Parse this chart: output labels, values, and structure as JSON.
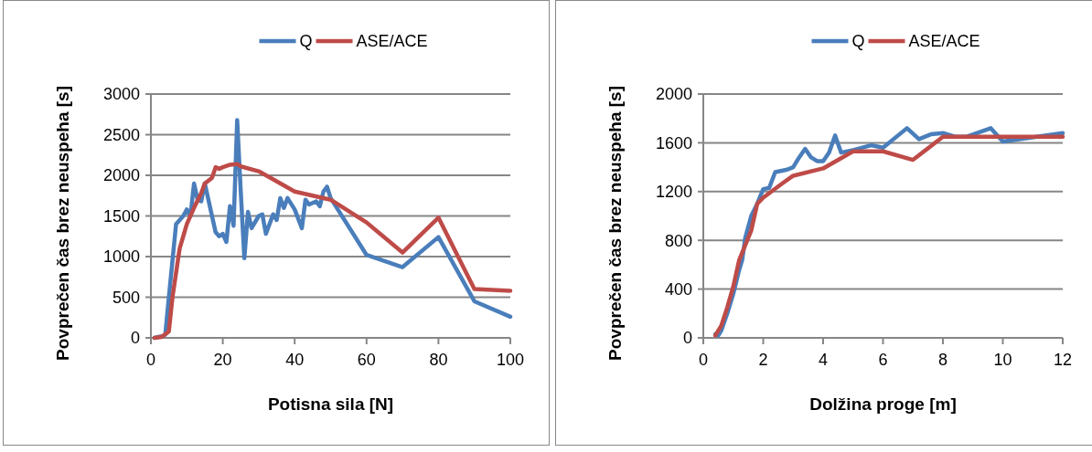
{
  "chart_data": [
    {
      "type": "line",
      "xlabel": "Potisna sila [N]",
      "ylabel": "Povprečen čas brez neuspeha [s]",
      "xlim": [
        0,
        100
      ],
      "xticks": [
        0,
        20,
        40,
        60,
        80,
        100
      ],
      "ylim": [
        0,
        3000
      ],
      "yticks": [
        0,
        500,
        1000,
        1500,
        2000,
        2500,
        3000
      ],
      "grid": "y",
      "legend": "top",
      "series": [
        {
          "name": "Q",
          "color": "#4a7ebb",
          "x": [
            1,
            3,
            4,
            5,
            7,
            9,
            10,
            11,
            12,
            13,
            14,
            15,
            16,
            17,
            18,
            19,
            20,
            21,
            22,
            23,
            24,
            25,
            26,
            27,
            28,
            30,
            31,
            32,
            34,
            35,
            36,
            37,
            38,
            40,
            42,
            43,
            44,
            46,
            47,
            48,
            49,
            50,
            60,
            70,
            80,
            90,
            100
          ],
          "values": [
            0,
            20,
            40,
            500,
            1400,
            1500,
            1580,
            1500,
            1900,
            1700,
            1680,
            1900,
            1700,
            1500,
            1300,
            1250,
            1280,
            1180,
            1620,
            1380,
            2680,
            1800,
            980,
            1550,
            1350,
            1500,
            1520,
            1280,
            1520,
            1450,
            1720,
            1600,
            1720,
            1580,
            1350,
            1700,
            1640,
            1680,
            1620,
            1800,
            1860,
            1720,
            1020,
            870,
            1240,
            450,
            260
          ]
        },
        {
          "name": "ASE/ACE",
          "color": "#be4b48",
          "x": [
            1,
            3,
            5,
            6,
            8,
            10,
            12,
            14,
            15,
            17,
            18,
            19,
            20,
            22,
            24,
            25,
            30,
            40,
            50,
            60,
            70,
            80,
            90,
            100
          ],
          "values": [
            0,
            10,
            80,
            500,
            1100,
            1400,
            1600,
            1780,
            1900,
            1970,
            2100,
            2080,
            2100,
            2130,
            2140,
            2110,
            2050,
            1800,
            1700,
            1420,
            1050,
            1480,
            600,
            580
          ]
        }
      ]
    },
    {
      "type": "line",
      "xlabel": "Dolžina proge [m]",
      "ylabel": "Povprečen čas brez neuspeha [s]",
      "xlim": [
        0,
        12
      ],
      "xticks": [
        0,
        2,
        4,
        6,
        8,
        10,
        12
      ],
      "ylim": [
        0,
        2000
      ],
      "yticks": [
        0,
        400,
        800,
        1200,
        1600,
        2000
      ],
      "grid": "y",
      "legend": "top",
      "series": [
        {
          "name": "Q",
          "color": "#4a7ebb",
          "x": [
            0.4,
            0.5,
            0.6,
            0.8,
            1,
            1.2,
            1.3,
            1.4,
            1.6,
            1.8,
            2,
            2.2,
            2.4,
            2.8,
            3,
            3.2,
            3.4,
            3.6,
            3.8,
            4,
            4.2,
            4.4,
            4.6,
            5,
            5.6,
            6,
            6.8,
            7.2,
            7.6,
            8,
            8.4,
            8.8,
            9.6,
            10,
            12
          ],
          "values": [
            30,
            20,
            60,
            200,
            360,
            560,
            640,
            820,
            1000,
            1100,
            1220,
            1230,
            1360,
            1380,
            1400,
            1480,
            1550,
            1480,
            1450,
            1450,
            1520,
            1660,
            1520,
            1540,
            1580,
            1560,
            1720,
            1630,
            1670,
            1680,
            1650,
            1650,
            1720,
            1610,
            1680
          ]
        },
        {
          "name": "ASE/ACE",
          "color": "#be4b48",
          "x": [
            0.4,
            0.6,
            0.8,
            1,
            1.2,
            1.6,
            1.8,
            2,
            2.6,
            3,
            4,
            5,
            6,
            7,
            8,
            9,
            10,
            12
          ],
          "values": [
            20,
            100,
            250,
            420,
            640,
            880,
            1100,
            1150,
            1260,
            1330,
            1390,
            1530,
            1530,
            1460,
            1650,
            1650,
            1650,
            1650
          ]
        }
      ]
    }
  ]
}
